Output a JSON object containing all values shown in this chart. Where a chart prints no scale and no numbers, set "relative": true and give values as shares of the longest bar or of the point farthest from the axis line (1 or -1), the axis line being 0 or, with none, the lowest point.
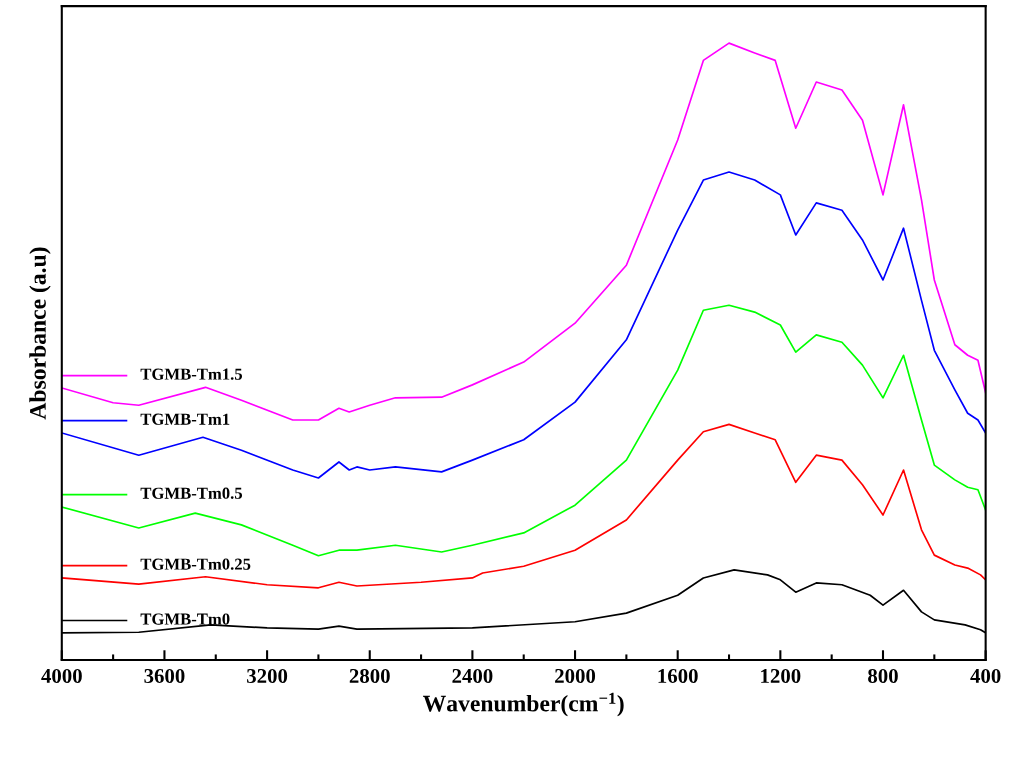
{
  "chart_data": {
    "type": "line",
    "xlabel": "Wavenumber(cm$^{−1}$)",
    "ylabel": "Absorbance (a.u)",
    "relative": true,
    "tick_labels": "x",
    "grid": false,
    "legend": "left",
    "marker": "none",
    "line_style": "solid",
    "xlim": [
      4000,
      400
    ],
    "xticks": [
      4000,
      {
        "value": 3800,
        "label": null
      },
      3600,
      {
        "value": 3400,
        "label": null
      },
      3200,
      {
        "value": 3000,
        "label": null
      },
      2800,
      {
        "value": 2600,
        "label": null
      },
      2400,
      {
        "value": 2200,
        "label": null
      },
      2000,
      {
        "value": 1800,
        "label": null
      },
      1600,
      {
        "value": 1400,
        "label": null
      },
      1200,
      {
        "value": 1000,
        "label": null
      },
      800,
      {
        "value": 600,
        "label": null
      },
      400
    ],
    "series": [
      {
        "name": "TGMB-Tm1.5",
        "color": "#ff00ff",
        "x": [
          4000,
          3800,
          3700,
          3440,
          3300,
          3100,
          3000,
          2920,
          2880,
          2800,
          2700,
          2520,
          2400,
          2200,
          2000,
          1800,
          1600,
          1500,
          1400,
          1300,
          1220,
          1140,
          1060,
          960,
          880,
          800,
          720,
          650,
          600,
          520,
          470,
          430,
          400
        ],
        "values": [
          0.441,
          0.417,
          0.413,
          0.442,
          0.421,
          0.389,
          0.389,
          0.408,
          0.402,
          0.413,
          0.425,
          0.426,
          0.446,
          0.483,
          0.546,
          0.64,
          0.843,
          0.972,
          1.0,
          0.984,
          0.972,
          0.862,
          0.937,
          0.924,
          0.875,
          0.754,
          0.9,
          0.746,
          0.616,
          0.511,
          0.494,
          0.486,
          0.433
        ]
      },
      {
        "name": "TGMB-Tm1",
        "color": "#0000ff",
        "x": [
          4000,
          3700,
          3450,
          3300,
          3100,
          3000,
          2920,
          2880,
          2850,
          2800,
          2700,
          2520,
          2400,
          2200,
          2000,
          1800,
          1600,
          1500,
          1400,
          1300,
          1200,
          1140,
          1060,
          960,
          880,
          800,
          720,
          650,
          600,
          520,
          470,
          430,
          400
        ],
        "values": [
          0.368,
          0.332,
          0.361,
          0.34,
          0.308,
          0.295,
          0.321,
          0.308,
          0.313,
          0.308,
          0.313,
          0.305,
          0.324,
          0.357,
          0.418,
          0.519,
          0.697,
          0.778,
          0.791,
          0.778,
          0.754,
          0.689,
          0.741,
          0.729,
          0.681,
          0.616,
          0.7,
          0.583,
          0.502,
          0.438,
          0.4,
          0.389,
          0.368
        ]
      },
      {
        "name": "TGMB-Tm0.5",
        "color": "#00ff00",
        "x": [
          4000,
          3700,
          3480,
          3300,
          3100,
          3000,
          2920,
          2850,
          2700,
          2520,
          2400,
          2200,
          2000,
          1800,
          1600,
          1500,
          1400,
          1300,
          1200,
          1140,
          1060,
          960,
          880,
          800,
          720,
          650,
          600,
          520,
          470,
          430,
          400
        ],
        "values": [
          0.248,
          0.214,
          0.238,
          0.219,
          0.186,
          0.169,
          0.178,
          0.178,
          0.186,
          0.175,
          0.186,
          0.206,
          0.251,
          0.324,
          0.47,
          0.567,
          0.575,
          0.564,
          0.543,
          0.499,
          0.527,
          0.515,
          0.478,
          0.425,
          0.494,
          0.389,
          0.316,
          0.292,
          0.28,
          0.276,
          0.243
        ]
      },
      {
        "name": "TGMB-Tm0.25",
        "color": "#ff0000",
        "x": [
          4000,
          3700,
          3440,
          3200,
          3000,
          2920,
          2850,
          2600,
          2400,
          2360,
          2200,
          2000,
          1800,
          1600,
          1500,
          1400,
          1300,
          1220,
          1140,
          1060,
          960,
          880,
          800,
          720,
          650,
          600,
          520,
          470,
          420,
          400
        ],
        "values": [
          0.133,
          0.123,
          0.135,
          0.122,
          0.117,
          0.126,
          0.12,
          0.126,
          0.133,
          0.141,
          0.152,
          0.178,
          0.227,
          0.324,
          0.37,
          0.382,
          0.368,
          0.357,
          0.288,
          0.332,
          0.324,
          0.284,
          0.235,
          0.308,
          0.211,
          0.17,
          0.154,
          0.149,
          0.138,
          0.13
        ]
      },
      {
        "name": "TGMB-Tm0",
        "color": "#000000",
        "x": [
          4000,
          3700,
          3420,
          3200,
          3000,
          2920,
          2850,
          2400,
          2000,
          1800,
          1600,
          1500,
          1380,
          1250,
          1200,
          1140,
          1060,
          960,
          850,
          800,
          720,
          650,
          600,
          480,
          420,
          400
        ],
        "values": [
          0.044,
          0.045,
          0.057,
          0.052,
          0.05,
          0.055,
          0.05,
          0.052,
          0.062,
          0.076,
          0.105,
          0.133,
          0.146,
          0.138,
          0.13,
          0.11,
          0.125,
          0.122,
          0.105,
          0.089,
          0.113,
          0.078,
          0.065,
          0.057,
          0.049,
          0.044
        ]
      }
    ]
  }
}
